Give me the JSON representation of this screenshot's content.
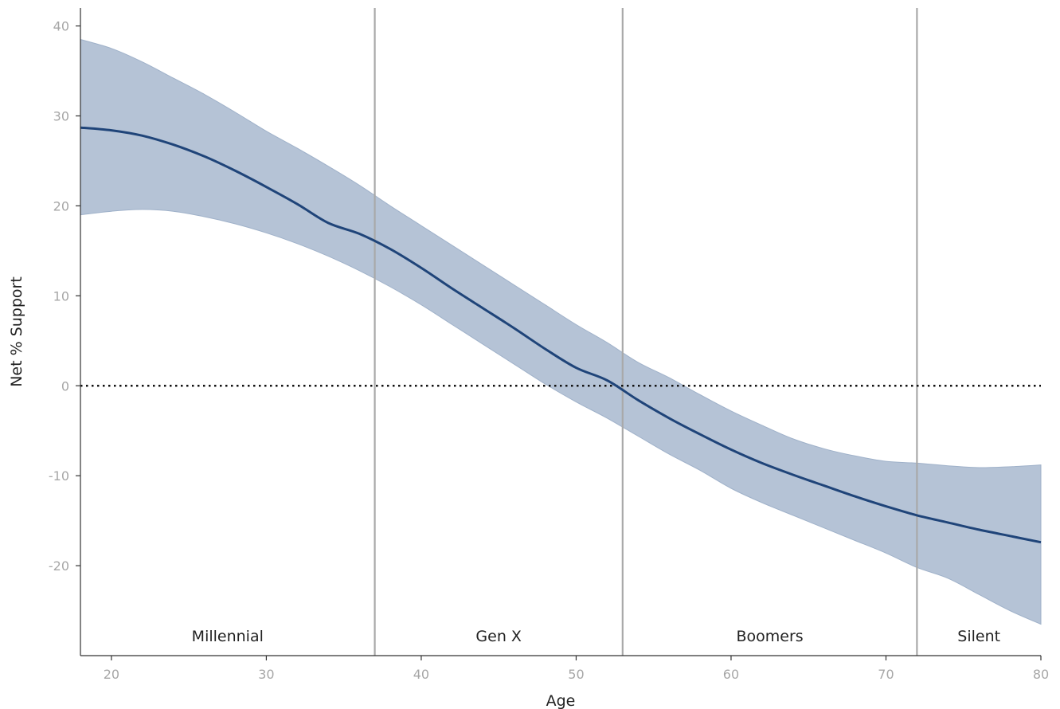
{
  "chart_data": {
    "type": "line",
    "title": "",
    "xlabel": "Age",
    "ylabel": "Net % Support",
    "xlim": [
      18,
      80
    ],
    "ylim": [
      -30,
      42
    ],
    "x_ticks": [
      20,
      30,
      40,
      50,
      60,
      70,
      80
    ],
    "y_ticks": [
      -20,
      -10,
      0,
      10,
      20,
      30,
      40
    ],
    "grid": false,
    "reference_line": {
      "y": 0,
      "style": "dotted"
    },
    "series": [
      {
        "x": [
          18,
          20,
          22,
          24,
          26,
          28,
          30,
          32,
          34,
          36,
          38,
          40,
          42,
          44,
          46,
          48,
          50,
          52,
          54,
          56,
          58,
          60,
          62,
          64,
          66,
          68,
          70,
          72,
          74,
          76,
          78,
          80
        ],
        "y": [
          28.7,
          28.4,
          27.8,
          26.8,
          25.5,
          23.9,
          22.1,
          20.2,
          18.1,
          16.9,
          15.2,
          13.1,
          10.8,
          8.6,
          6.4,
          4.1,
          2.0,
          0.6,
          -1.6,
          -3.6,
          -5.4,
          -7.1,
          -8.6,
          -9.9,
          -11.1,
          -12.3,
          -13.4,
          -14.4,
          -15.2,
          -16.0,
          -16.7,
          -17.4
        ],
        "lower": [
          19.0,
          19.4,
          19.6,
          19.4,
          18.8,
          18.0,
          17.0,
          15.8,
          14.4,
          12.8,
          11.0,
          9.0,
          6.8,
          4.6,
          2.4,
          0.2,
          -1.8,
          -3.6,
          -5.6,
          -7.6,
          -9.4,
          -11.4,
          -13.0,
          -14.4,
          -15.8,
          -17.2,
          -18.6,
          -20.2,
          -21.4,
          -23.2,
          -25.0,
          -26.5
        ],
        "upper": [
          38.5,
          37.5,
          36.0,
          34.2,
          32.4,
          30.4,
          28.3,
          26.4,
          24.4,
          22.3,
          20.0,
          17.8,
          15.6,
          13.4,
          11.2,
          9.0,
          6.8,
          4.8,
          2.6,
          0.9,
          -1.0,
          -2.8,
          -4.4,
          -5.9,
          -7.0,
          -7.8,
          -8.4,
          -8.6,
          -8.9,
          -9.1,
          -9.0,
          -8.8
        ],
        "color": "#1f4479",
        "band_color": "#b5c3d6"
      }
    ],
    "generation_boundaries": [
      37,
      53,
      72
    ],
    "boundary_color": "#a9a9a9",
    "generations": [
      {
        "label": "Millennial",
        "from": 18,
        "to": 37
      },
      {
        "label": "Gen X",
        "from": 37,
        "to": 53
      },
      {
        "label": "Boomers",
        "from": 53,
        "to": 72
      },
      {
        "label": "Silent",
        "from": 72,
        "to": 80
      }
    ]
  }
}
